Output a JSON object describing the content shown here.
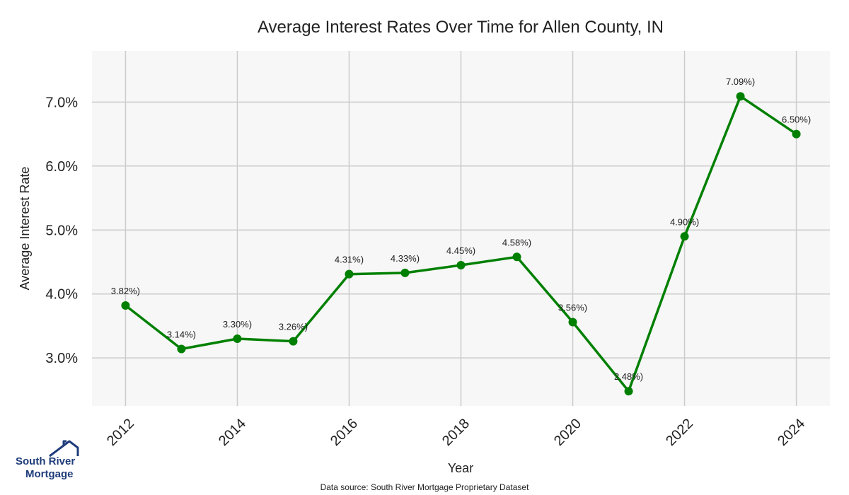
{
  "chart_data": {
    "type": "line",
    "title": "Average Interest Rates Over Time for Allen County, IN",
    "xlabel": "Year",
    "ylabel": "Average Interest Rate",
    "x": [
      2012,
      2013,
      2014,
      2015,
      2016,
      2017,
      2018,
      2019,
      2020,
      2021,
      2022,
      2023,
      2024
    ],
    "series": [
      {
        "values": [
          3.82,
          3.14,
          3.3,
          3.26,
          4.31,
          4.33,
          4.45,
          4.58,
          3.56,
          2.48,
          4.9,
          7.09,
          6.5
        ],
        "data_labels": [
          "3.82%)",
          "3.14%)",
          "3.30%)",
          "3.26%)",
          "4.31%)",
          "4.33%)",
          "4.45%)",
          "4.58%)",
          "3.56%)",
          "2.48%)",
          "4.90%)",
          "7.09%)",
          "6.50%)"
        ]
      }
    ],
    "xticks": [
      "2012",
      "2014",
      "2016",
      "2018",
      "2020",
      "2022",
      "2024"
    ],
    "yticks": [
      "3.0%",
      "4.0%",
      "5.0%",
      "6.0%",
      "7.0%"
    ],
    "ytick_values": [
      3,
      4,
      5,
      6,
      7
    ],
    "xlim": [
      2011.4,
      2024.6
    ],
    "ylim": [
      2.25,
      7.8
    ],
    "grid": true,
    "line_color": "#008000",
    "plot_background": "#f7f7f7"
  },
  "source_note": "Data source: South River Mortgage Proprietary Dataset",
  "logo": {
    "line1": "South River",
    "line2": "Mortgage",
    "icon": "house-icon"
  }
}
